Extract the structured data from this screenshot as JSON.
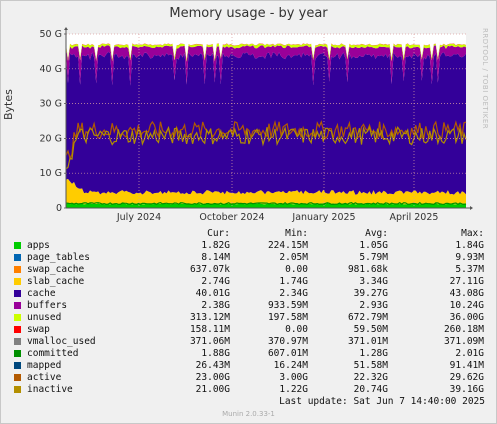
{
  "window": {
    "title": "Memory usage - by year",
    "watermark": "RRDTOOL / TOBI OETIKER",
    "footer": "Munin 2.0.33-1"
  },
  "legend_headers": {
    "cur": "Cur:",
    "min": "Min:",
    "avg": "Avg:",
    "max": "Max:"
  },
  "legend": [
    {
      "name": "apps",
      "color": "#00cc00",
      "cur": "1.82G",
      "min": "224.15M",
      "avg": "1.05G",
      "max": "1.84G"
    },
    {
      "name": "page_tables",
      "color": "#0066b3",
      "cur": "8.14M",
      "min": "2.05M",
      "avg": "5.79M",
      "max": "9.93M"
    },
    {
      "name": "swap_cache",
      "color": "#ff8000",
      "cur": "637.07k",
      "min": "0.00",
      "avg": "981.68k",
      "max": "5.37M"
    },
    {
      "name": "slab_cache",
      "color": "#ffcc00",
      "cur": "2.74G",
      "min": "1.74G",
      "avg": "3.34G",
      "max": "27.11G"
    },
    {
      "name": "cache",
      "color": "#330099",
      "cur": "40.01G",
      "min": "2.34G",
      "avg": "39.27G",
      "max": "43.08G"
    },
    {
      "name": "buffers",
      "color": "#990099",
      "cur": "2.38G",
      "min": "933.59M",
      "avg": "2.93G",
      "max": "10.24G"
    },
    {
      "name": "unused",
      "color": "#ccff00",
      "cur": "313.12M",
      "min": "197.58M",
      "avg": "672.79M",
      "max": "36.00G"
    },
    {
      "name": "swap",
      "color": "#ff0000",
      "cur": "158.11M",
      "min": "0.00",
      "avg": "59.50M",
      "max": "260.18M"
    },
    {
      "name": "vmalloc_used",
      "color": "#808080",
      "cur": "371.06M",
      "min": "370.97M",
      "avg": "371.01M",
      "max": "371.09M"
    },
    {
      "name": "committed",
      "color": "#008f00",
      "cur": "1.88G",
      "min": "607.01M",
      "avg": "1.28G",
      "max": "2.01G"
    },
    {
      "name": "mapped",
      "color": "#00487d",
      "cur": "26.43M",
      "min": "16.24M",
      "avg": "51.58M",
      "max": "91.41M"
    },
    {
      "name": "active",
      "color": "#b35a00",
      "cur": "23.00G",
      "min": "3.00G",
      "avg": "22.32G",
      "max": "29.62G"
    },
    {
      "name": "inactive",
      "color": "#b38f00",
      "cur": "21.00G",
      "min": "1.22G",
      "avg": "20.74G",
      "max": "39.16G"
    }
  ],
  "last_update": "Last update:  Sat Jun  7 14:40:00 2025",
  "chart_data": {
    "type": "area",
    "title": "Memory usage - by year",
    "ylabel": "Bytes",
    "ylim": [
      0,
      50
    ],
    "y_unit": "G",
    "yticks": [
      "0",
      "10 G",
      "20 G",
      "30 G",
      "40 G",
      "50 G"
    ],
    "xticks": [
      "July 2024",
      "October 2024",
      "January 2025",
      "April 2025"
    ],
    "grid": true,
    "stacked_series": [
      {
        "name": "apps",
        "color": "#00cc00",
        "approx_G": 1.05
      },
      {
        "name": "slab_cache",
        "color": "#ffcc00",
        "approx_G": 3.34
      },
      {
        "name": "cache",
        "color": "#330099",
        "approx_G": 39.27
      },
      {
        "name": "buffers",
        "color": "#990099",
        "approx_G": 2.93
      },
      {
        "name": "unused",
        "color": "#ccff00",
        "approx_G": 0.67
      },
      {
        "name": "swap",
        "color": "#ff0000",
        "approx_G": 0.06
      }
    ],
    "line_series": [
      {
        "name": "active",
        "color": "#b35a00",
        "approx_G": 22.32
      },
      {
        "name": "inactive",
        "color": "#b38f00",
        "approx_G": 20.74
      },
      {
        "name": "committed",
        "color": "#008f00",
        "approx_G": 1.28
      }
    ]
  }
}
